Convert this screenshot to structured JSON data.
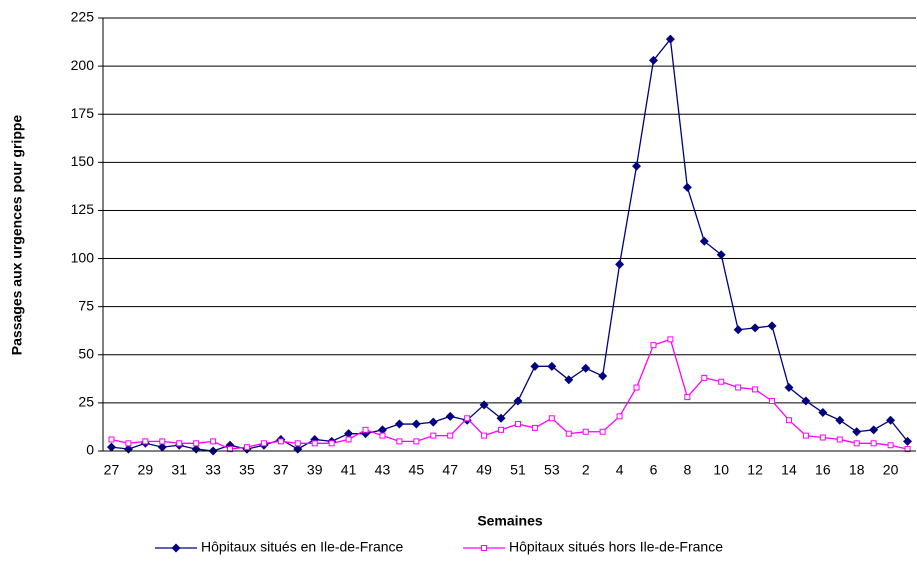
{
  "chart_data": {
    "type": "line",
    "x_label": "Semaines",
    "y_label": "Passages aux urgences pour grippe",
    "categories": [
      "27",
      null,
      "29",
      null,
      "31",
      null,
      "33",
      null,
      "35",
      null,
      "37",
      null,
      "39",
      null,
      "41",
      null,
      "43",
      null,
      "45",
      null,
      "47",
      null,
      "49",
      null,
      "51",
      null,
      "53",
      null,
      "2",
      null,
      "4",
      null,
      "6",
      null,
      "8",
      null,
      "10",
      null,
      "12",
      null,
      "14",
      null,
      "16",
      null,
      "18",
      null,
      "20",
      null
    ],
    "series": [
      {
        "name": "Hôpitaux situés en Ile-de-France",
        "color": "#000080",
        "marker": "diamond",
        "values": [
          2,
          1,
          4,
          2,
          3,
          1,
          0,
          3,
          1,
          3,
          6,
          1,
          6,
          5,
          9,
          9,
          11,
          14,
          14,
          15,
          18,
          16,
          24,
          17,
          26,
          44,
          44,
          37,
          43,
          39,
          97,
          148,
          203,
          214,
          137,
          109,
          102,
          63,
          64,
          65,
          33,
          26,
          20,
          16,
          10,
          11,
          16,
          5
        ]
      },
      {
        "name": "Hôpitaux situés hors Ile-de-France",
        "color": "#ff00ff",
        "marker": "square",
        "values": [
          6,
          4,
          5,
          5,
          4,
          4,
          5,
          1,
          2,
          4,
          5,
          4,
          4,
          4,
          6,
          11,
          8,
          5,
          5,
          8,
          8,
          17,
          8,
          11,
          14,
          12,
          17,
          9,
          10,
          10,
          18,
          33,
          55,
          58,
          28,
          38,
          36,
          33,
          32,
          26,
          16,
          8,
          7,
          6,
          4,
          4,
          3,
          1
        ]
      }
    ],
    "ylim": [
      0,
      225
    ],
    "yticks": [
      0,
      25,
      50,
      75,
      100,
      125,
      150,
      175,
      200,
      225
    ],
    "grid": true,
    "legend": "bottom"
  }
}
